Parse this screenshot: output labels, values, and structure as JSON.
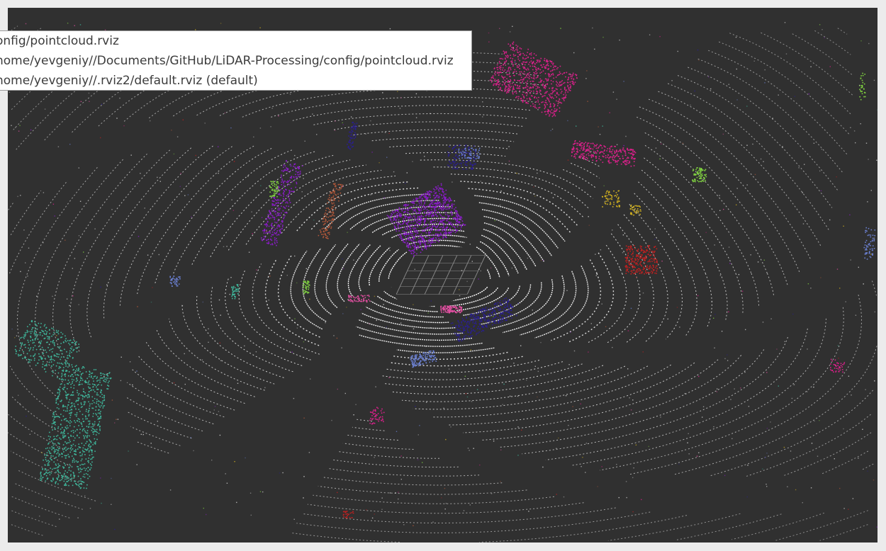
{
  "config_menu": {
    "items": [
      {
        "label": "onfig/pointcloud.rviz"
      },
      {
        "label": "home/yevgeniy//Documents/GitHub/LiDAR-Processing/config/pointcloud.rviz"
      },
      {
        "label": "home/yevgeniy//.rviz2/default.rviz (default)"
      }
    ]
  },
  "viewport": {
    "background": "#303030",
    "ground_points_color": "#ffffff",
    "grid_color": "#8c8c8c",
    "cluster_colors": [
      "#8a1cc8",
      "#d9208a",
      "#3fb59a",
      "#2a1f8f",
      "#c02020",
      "#6a7fd0",
      "#e04fa0",
      "#b0583a",
      "#7fd040",
      "#d0b020"
    ]
  }
}
